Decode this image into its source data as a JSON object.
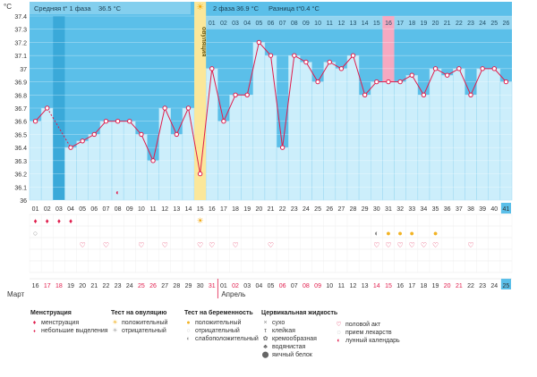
{
  "chart_data": {
    "type": "line",
    "ylabel": "°C",
    "ylim": [
      36.0,
      37.4
    ],
    "yticks": [
      "37.4",
      "37.3",
      "37.2",
      "37.1",
      "37",
      "36.9",
      "36.8",
      "36.7",
      "36.6",
      "36.5",
      "36.4",
      "36.3",
      "36.2",
      "36.1",
      "36"
    ],
    "phase1_label": "Средняя t° 1 фаза",
    "phase1_value": "36.5 °C",
    "phase2_label": "2 фаза",
    "phase2_value": "36.9 °C",
    "diff_label": "Разница t°",
    "diff_value": "0.4 °C",
    "ovulation_label": "овуляция",
    "cycle_days": [
      "01",
      "02",
      "03",
      "04",
      "05",
      "06",
      "07",
      "08",
      "09",
      "10",
      "11",
      "12",
      "13",
      "14",
      "15",
      "16",
      "17",
      "18",
      "19",
      "20",
      "21",
      "22",
      "23",
      "24",
      "25",
      "26",
      "27",
      "28",
      "29",
      "30",
      "31",
      "32",
      "33",
      "34",
      "35",
      "36",
      "37",
      "38",
      "39",
      "40",
      "41"
    ],
    "top_days": [
      "01",
      "02",
      "03",
      "04",
      "05",
      "06",
      "07",
      "08",
      "09",
      "10",
      "11",
      "12",
      "13",
      "14",
      "15",
      "16",
      "17",
      "18",
      "19",
      "20",
      "21",
      "22",
      "23",
      "24",
      "25",
      "26"
    ],
    "dates": [
      "16",
      "17",
      "18",
      "19",
      "20",
      "21",
      "22",
      "23",
      "24",
      "25",
      "26",
      "27",
      "28",
      "29",
      "30",
      "31",
      "01",
      "02",
      "03",
      "04",
      "05",
      "06",
      "07",
      "08",
      "09",
      "10",
      "11",
      "12",
      "13",
      "14",
      "15",
      "16",
      "17",
      "18",
      "19",
      "20",
      "21",
      "22",
      "23",
      "24",
      "25"
    ],
    "red_date_idx": [
      1,
      2,
      9,
      10,
      15,
      17,
      21,
      23,
      24,
      29,
      30,
      35,
      36
    ],
    "month1": "Март",
    "month2": "Апрель",
    "series": [
      {
        "values": [
          36.6,
          36.7,
          null,
          36.4,
          36.45,
          36.5,
          36.6,
          36.6,
          36.6,
          36.5,
          36.3,
          36.7,
          36.5,
          36.7,
          36.2,
          37.0,
          36.6,
          36.8,
          36.8,
          37.2,
          37.1,
          36.4,
          37.1,
          37.05,
          36.9,
          37.05,
          37.0,
          37.1,
          36.8,
          36.9,
          36.9,
          36.9,
          36.95,
          36.8,
          37.0,
          36.95,
          37.0,
          36.8,
          37.0,
          37.0,
          36.9
        ]
      }
    ],
    "dotted_segment": [
      1,
      3
    ],
    "ovulation_index": 14,
    "pink_column_index": 30,
    "highlight_last_index": 40,
    "dark_gap_index": 2
  },
  "markers": {
    "menstruation_days": [
      0,
      1,
      2,
      3
    ],
    "lunar_day": 7,
    "ovulation_pos_day": 14,
    "cervical_dry_day": 0,
    "sex_days": [
      4,
      6,
      9,
      11,
      14,
      15,
      17,
      20,
      29,
      30,
      31,
      32,
      33,
      34,
      37
    ],
    "preg_weak_day": 29,
    "preg_pos_days": [
      30,
      31,
      32,
      34
    ]
  },
  "legend": {
    "menstruation": {
      "title": "Менструация",
      "items": [
        "менструация",
        "небольшие выделения"
      ]
    },
    "ovulation_test": {
      "title": "Тест на овуляцию",
      "items": [
        "положительный",
        "отрицательный"
      ]
    },
    "pregnancy_test": {
      "title": "Тест на беременность",
      "items": [
        "положительный",
        "отрицательный",
        "слабоположительный"
      ]
    },
    "cervical": {
      "title": "Цервикальная жидкость",
      "items": [
        "сухо",
        "клейкая",
        "кремообразная",
        "водянистая",
        "яичный белок"
      ]
    },
    "other": {
      "items": [
        "половой акт",
        "прием лекарств",
        "лунный календарь"
      ]
    }
  },
  "colors": {
    "top_band": "#5bbfe9",
    "bar_fill": "#cceefb",
    "bar_edge": "#9ad8f2",
    "line": "#e01c4c",
    "point_fill": "#ffffff",
    "ovulation": "#fbe79a",
    "pink": "#f6a9c1",
    "grid": "#b7e3f5",
    "dark_gap": "#3aa9d9"
  }
}
